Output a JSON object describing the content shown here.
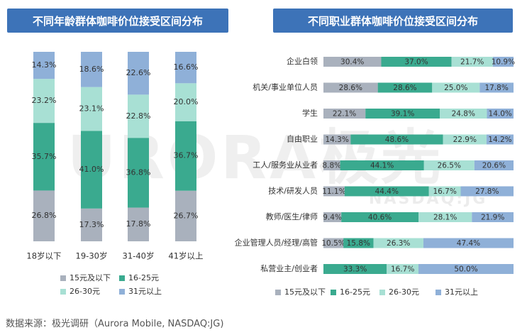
{
  "source": "数据来源：极光调研（Aurora Mobile, NASDAQ:JG)",
  "watermark": {
    "main": "URORA极光",
    "sub": "NASDAQ:JG"
  },
  "colors": {
    "15元及以下": "#a9b1bd",
    "16-25元": "#3aaa8f",
    "26-30元": "#a8e0d4",
    "31元以上": "#8fb0d8",
    "title_bg": "#3d73b8"
  },
  "legend": [
    "15元及以下",
    "16-25元",
    "26-30元",
    "31元以上"
  ],
  "chart_data": [
    {
      "type": "bar",
      "stacked": true,
      "orientation": "vertical",
      "title": "不同年龄群体咖啡价位接受区间分布",
      "categories": [
        "18岁以下",
        "19-30岁",
        "31-40岁",
        "41岁以上"
      ],
      "series": [
        {
          "name": "15元及以下",
          "values": [
            26.8,
            17.3,
            17.8,
            26.7
          ]
        },
        {
          "name": "16-25元",
          "values": [
            35.7,
            41.0,
            36.8,
            36.7
          ]
        },
        {
          "name": "26-30元",
          "values": [
            23.2,
            23.1,
            22.8,
            20.0
          ]
        },
        {
          "name": "31元以上",
          "values": [
            14.3,
            18.6,
            22.6,
            16.6
          ]
        }
      ],
      "legend_position": "bottom"
    },
    {
      "type": "bar",
      "stacked": true,
      "orientation": "horizontal",
      "title": "不同职业群体咖啡价位接受区间分布",
      "categories": [
        "企业白领",
        "机关/事业单位人员",
        "学生",
        "自由职业",
        "工人/服务业从业者",
        "技术/研发人员",
        "教师/医生/律师",
        "企业管理人员/经理/高管",
        "私营业主/创业者"
      ],
      "series": [
        {
          "name": "15元及以下",
          "values": [
            30.4,
            28.6,
            22.1,
            14.3,
            8.8,
            11.1,
            9.4,
            10.5,
            0
          ]
        },
        {
          "name": "16-25元",
          "values": [
            37.0,
            28.6,
            39.1,
            48.6,
            44.1,
            44.4,
            40.6,
            15.8,
            33.3
          ]
        },
        {
          "name": "26-30元",
          "values": [
            21.7,
            25.0,
            24.8,
            22.9,
            26.5,
            16.7,
            28.1,
            26.3,
            16.7
          ]
        },
        {
          "name": "31元以上",
          "values": [
            10.9,
            17.8,
            14.0,
            14.2,
            20.6,
            27.8,
            21.9,
            47.4,
            50.0
          ]
        }
      ],
      "legend_position": "bottom"
    }
  ]
}
